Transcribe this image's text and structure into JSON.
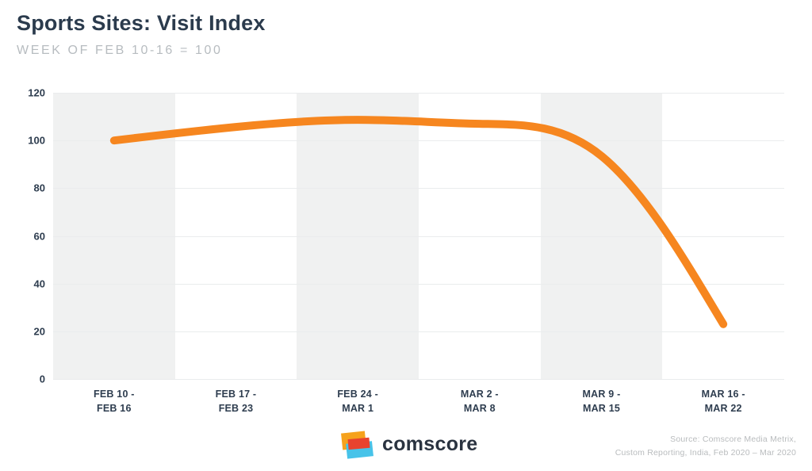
{
  "chart_data": {
    "type": "line",
    "title": "Sports Sites: Visit Index",
    "subtitle": "WEEK OF FEB 10-16 = 100",
    "categories": [
      "FEB 10 -\nFEB 16",
      "FEB 17 -\nFEB 23",
      "FEB 24 -\nMAR 1",
      "MAR 2 -\nMAR 8",
      "MAR 9 -\nMAR 15",
      "MAR 16 -\nMAR 22"
    ],
    "values": [
      100,
      106,
      110,
      106,
      108,
      23
    ],
    "xlabel": "",
    "ylabel": "",
    "ylim": [
      0,
      120
    ],
    "y_ticks": [
      0,
      20,
      40,
      60,
      80,
      100,
      120
    ],
    "grid": true,
    "legend": false,
    "smoothing": "basis",
    "line_color": "#F6861F",
    "band_color": "#F0F1F1",
    "banded_columns": "alternating starting with first column shaded"
  },
  "footer": {
    "logo_text": "comscore",
    "logo_colors": {
      "orange": "#F6A21C",
      "red": "#E8432F",
      "blue": "#47C3E9"
    },
    "source_line1": "Source: Comscore Media Metrix,",
    "source_line2": "Custom Reporting, India, Feb 2020 – Mar 2020"
  }
}
